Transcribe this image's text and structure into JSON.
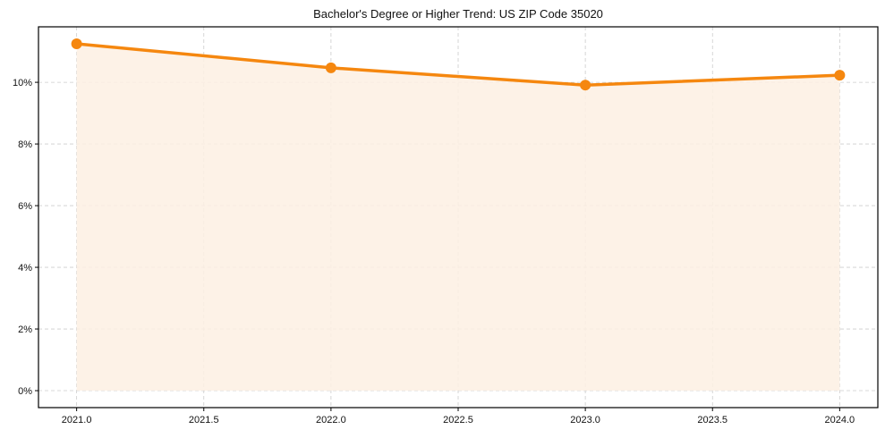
{
  "chart_data": {
    "type": "line",
    "title": "Bachelor's Degree or Higher Trend: US ZIP Code 35020",
    "xlabel": "",
    "ylabel": "",
    "x": [
      2021,
      2022,
      2023,
      2024
    ],
    "series": [
      {
        "name": "Bachelor's Degree or Higher",
        "values": [
          11.25,
          10.47,
          9.91,
          10.23
        ],
        "color": "#f5870f",
        "fill": "#fdf0e3"
      }
    ],
    "xticks": [
      "2021.0",
      "2021.5",
      "2022.0",
      "2022.5",
      "2023.0",
      "2023.5",
      "2024.0"
    ],
    "yticks": [
      "0%",
      "2%",
      "4%",
      "6%",
      "8%",
      "10%"
    ],
    "xlim": [
      2020.85,
      2024.15
    ],
    "ylim": [
      -0.55,
      11.8
    ],
    "grid": true,
    "legend": false
  }
}
